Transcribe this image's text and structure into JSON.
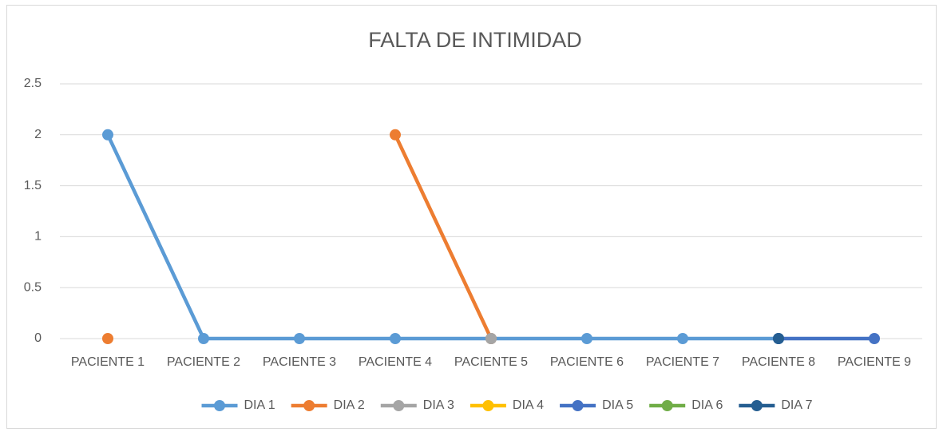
{
  "chart_data": {
    "type": "line",
    "title": "FALTA DE INTIMIDAD",
    "categories": [
      "PACIENTE 1",
      "PACIENTE 2",
      "PACIENTE 3",
      "PACIENTE 4",
      "PACIENTE 5",
      "PACIENTE 6",
      "PACIENTE 7",
      "PACIENTE 8",
      "PACIENTE 9"
    ],
    "series": [
      {
        "name": "DIA 1",
        "color": "#5b9bd5",
        "values": [
          2,
          0,
          0,
          0,
          0,
          0,
          0,
          0,
          null
        ]
      },
      {
        "name": "DIA 2",
        "color": "#ed7d31",
        "values": [
          0,
          null,
          null,
          2,
          0,
          null,
          null,
          null,
          null
        ]
      },
      {
        "name": "DIA 3",
        "color": "#a5a5a5",
        "values": [
          null,
          null,
          null,
          null,
          0,
          null,
          null,
          null,
          null
        ]
      },
      {
        "name": "DIA 4",
        "color": "#ffc000",
        "values": [
          null,
          null,
          null,
          null,
          null,
          null,
          null,
          null,
          null
        ]
      },
      {
        "name": "DIA 5",
        "color": "#4472c4",
        "values": [
          null,
          null,
          null,
          null,
          null,
          null,
          null,
          0,
          0
        ]
      },
      {
        "name": "DIA 6",
        "color": "#70ad47",
        "values": [
          null,
          null,
          null,
          null,
          null,
          null,
          null,
          null,
          null
        ]
      },
      {
        "name": "DIA 7",
        "color": "#255e91",
        "values": [
          null,
          null,
          null,
          null,
          null,
          null,
          null,
          0,
          null
        ]
      }
    ],
    "ylim": [
      0,
      2.5
    ],
    "yticks": [
      0,
      0.5,
      1,
      1.5,
      2,
      2.5
    ],
    "grid": true,
    "legend": "bottom"
  }
}
